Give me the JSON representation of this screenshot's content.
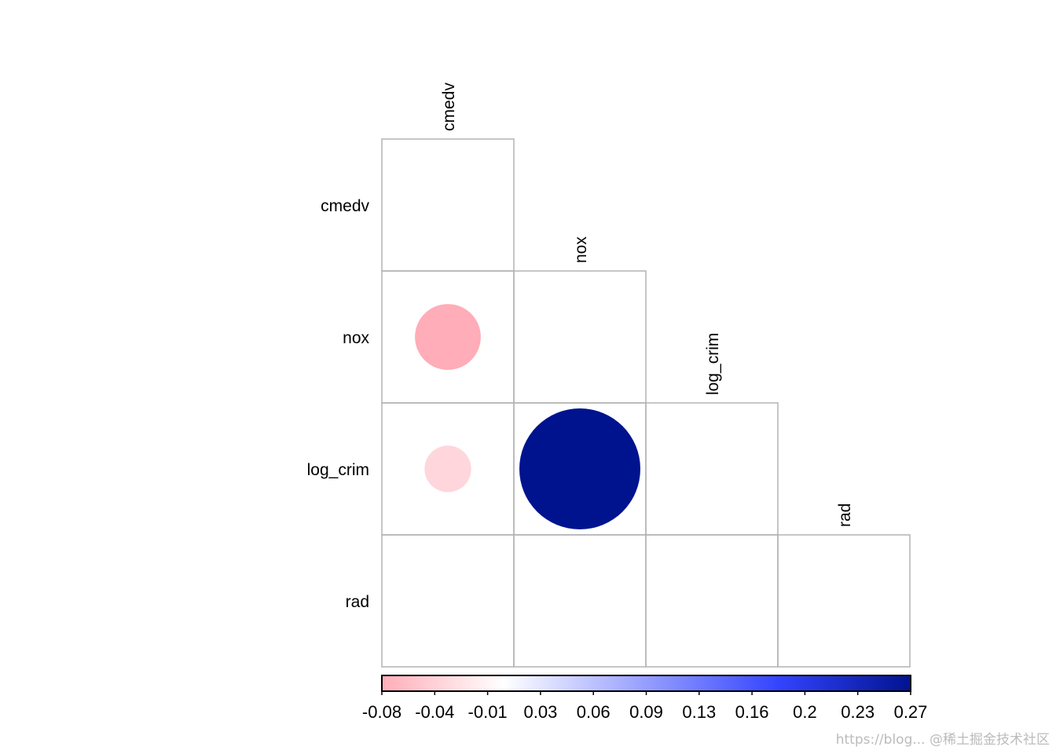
{
  "chart_data": {
    "type": "heatmap",
    "subtype": "corrplot-circle-lower",
    "variables": [
      "cmedv",
      "nox",
      "log_crim",
      "rad"
    ],
    "matrix": [
      [
        0,
        null,
        null,
        null
      ],
      [
        -0.08,
        0,
        null,
        null
      ],
      [
        -0.04,
        0.27,
        0,
        null
      ],
      [
        0,
        0,
        0,
        0
      ]
    ],
    "colorbar": {
      "ticks": [
        "-0.08",
        "-0.04",
        "-0.01",
        "0.03",
        "0.06",
        "0.09",
        "0.13",
        "0.16",
        "0.2",
        "0.23",
        "0.27"
      ],
      "range": [
        -0.08,
        0.27
      ],
      "colors": [
        "#ffadb8",
        "#ffffff",
        "#3344ff",
        "#00138f"
      ]
    },
    "title": "",
    "xlabel": "",
    "ylabel": ""
  },
  "watermark": "https://blog... @稀土掘金技术社区"
}
